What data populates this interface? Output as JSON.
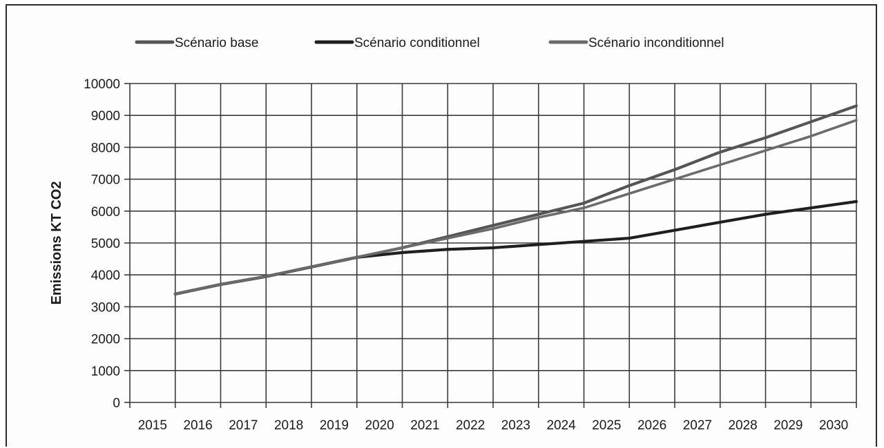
{
  "chart_data": {
    "type": "line",
    "title": "",
    "xlabel": "",
    "ylabel": "Emissions  KT CO2",
    "x": [
      "2015",
      "2016",
      "2017",
      "2018",
      "2019",
      "2020",
      "2021",
      "2022",
      "2023",
      "2024",
      "2025",
      "2026",
      "2027",
      "2028",
      "2029",
      "2030"
    ],
    "ylim": [
      0,
      10000
    ],
    "yticks": [
      0,
      1000,
      2000,
      3000,
      4000,
      5000,
      6000,
      7000,
      8000,
      9000,
      10000
    ],
    "grid": true,
    "legend_position": "top",
    "series": [
      {
        "name": "Scénario base",
        "color": "#555555",
        "values": [
          3400,
          3700,
          3950,
          4250,
          4550,
          4850,
          5200,
          5550,
          5900,
          6250,
          6800,
          7300,
          7850,
          8300,
          8800,
          9300
        ]
      },
      {
        "name": "Scénario conditionnel",
        "color": "#1f1f1f",
        "values": [
          3400,
          3700,
          3950,
          4250,
          4550,
          4700,
          4800,
          4850,
          4950,
          5050,
          5150,
          5400,
          5650,
          5900,
          6100,
          6300
        ]
      },
      {
        "name": "Scénario inconditionnel",
        "color": "#6b6b6b",
        "values": [
          3400,
          3700,
          3950,
          4250,
          4550,
          4850,
          5150,
          5450,
          5800,
          6100,
          6550,
          7000,
          7450,
          7900,
          8350,
          8850
        ]
      }
    ]
  }
}
